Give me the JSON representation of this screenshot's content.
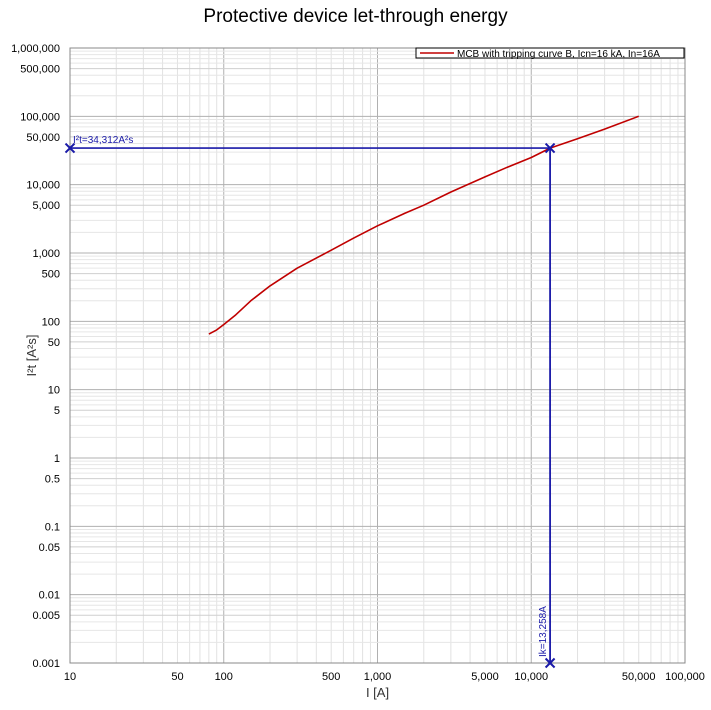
{
  "chart_data": {
    "type": "line",
    "title": "Protective device let-through energy",
    "xlabel": "I [A]",
    "ylabel": "I²t [A²s]",
    "xscale": "log",
    "yscale": "log",
    "xlim": [
      10,
      100000
    ],
    "ylim": [
      0.001,
      1000000
    ],
    "grid": true,
    "legend_position": "top-right",
    "x_ticks": [
      {
        "value": 10,
        "label": "10"
      },
      {
        "value": 50,
        "label": "50"
      },
      {
        "value": 100,
        "label": "100"
      },
      {
        "value": 500,
        "label": "500"
      },
      {
        "value": 1000,
        "label": "1,000"
      },
      {
        "value": 5000,
        "label": "5,000"
      },
      {
        "value": 10000,
        "label": "10,000"
      },
      {
        "value": 50000,
        "label": "50,000"
      },
      {
        "value": 100000,
        "label": "100,000"
      }
    ],
    "y_ticks": [
      {
        "value": 0.001,
        "label": "0.001"
      },
      {
        "value": 0.005,
        "label": "0.005"
      },
      {
        "value": 0.01,
        "label": "0.01"
      },
      {
        "value": 0.05,
        "label": "0.05"
      },
      {
        "value": 0.1,
        "label": "0.1"
      },
      {
        "value": 0.5,
        "label": "0.5"
      },
      {
        "value": 1,
        "label": "1"
      },
      {
        "value": 5,
        "label": "5"
      },
      {
        "value": 10,
        "label": "10"
      },
      {
        "value": 50,
        "label": "50"
      },
      {
        "value": 100,
        "label": "100"
      },
      {
        "value": 500,
        "label": "500"
      },
      {
        "value": 1000,
        "label": "1,000"
      },
      {
        "value": 5000,
        "label": "5,000"
      },
      {
        "value": 10000,
        "label": "10,000"
      },
      {
        "value": 50000,
        "label": "50,000"
      },
      {
        "value": 100000,
        "label": "100,000"
      },
      {
        "value": 500000,
        "label": "500,000"
      },
      {
        "value": 1000000,
        "label": "1,000,000"
      }
    ],
    "series": [
      {
        "name": "MCB with tripping curve B, Icn=16 kA, In=16A",
        "color": "#c00000",
        "x": [
          80,
          90,
          100,
          120,
          150,
          200,
          300,
          500,
          700,
          1000,
          1500,
          2000,
          3000,
          5000,
          7000,
          10000,
          13258,
          20000,
          30000,
          50000
        ],
        "y": [
          65,
          75,
          90,
          125,
          200,
          330,
          600,
          1100,
          1650,
          2500,
          3800,
          5000,
          7800,
          13000,
          18000,
          25000,
          34312,
          47000,
          65000,
          100000
        ]
      }
    ],
    "annotations": [
      {
        "name": "i2t-marker",
        "label": "I²t=34,312A²s",
        "x": 13258,
        "y": 34312,
        "color": "#1a1aa8"
      },
      {
        "name": "ik-marker",
        "label": "Ik=13,258A",
        "x": 13258,
        "y": 0.001,
        "color": "#1a1aa8"
      }
    ]
  }
}
